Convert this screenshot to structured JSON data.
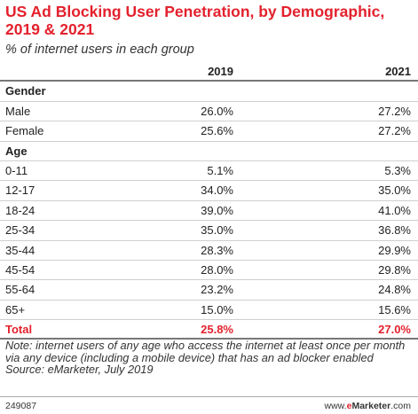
{
  "chart_data": {
    "type": "table",
    "title": "US Ad Blocking User Penetration, by Demographic, 2019 & 2021",
    "subtitle": "% of internet users in each group",
    "columns": [
      "",
      "2019",
      "2021"
    ],
    "sections": [
      {
        "name": "Gender",
        "rows": [
          {
            "label": "Male",
            "values": [
              "26.0%",
              "27.2%"
            ]
          },
          {
            "label": "Female",
            "values": [
              "25.6%",
              "27.2%"
            ]
          }
        ]
      },
      {
        "name": "Age",
        "rows": [
          {
            "label": "0-11",
            "values": [
              "5.1%",
              "5.3%"
            ]
          },
          {
            "label": "12-17",
            "values": [
              "34.0%",
              "35.0%"
            ]
          },
          {
            "label": "18-24",
            "values": [
              "39.0%",
              "41.0%"
            ]
          },
          {
            "label": "25-34",
            "values": [
              "35.0%",
              "36.8%"
            ]
          },
          {
            "label": "35-44",
            "values": [
              "28.3%",
              "29.9%"
            ]
          },
          {
            "label": "45-54",
            "values": [
              "28.0%",
              "29.8%"
            ]
          },
          {
            "label": "55-64",
            "values": [
              "23.2%",
              "24.8%"
            ]
          },
          {
            "label": "65+",
            "values": [
              "15.0%",
              "15.6%"
            ]
          }
        ]
      }
    ],
    "total": {
      "label": "Total",
      "values": [
        "25.8%",
        "27.0%"
      ]
    },
    "note": "Note: internet users of any age who access the internet at least once per month via any device (including a mobile device) that has an ad blocker enabled",
    "source": "Source: eMarketer, July 2019"
  },
  "footer": {
    "id": "249087",
    "brand_prefix": "www.",
    "brand_e": "e",
    "brand_rest": "Marketer",
    "brand_suffix": ".com"
  },
  "colors": {
    "accent": "#e3212d"
  }
}
